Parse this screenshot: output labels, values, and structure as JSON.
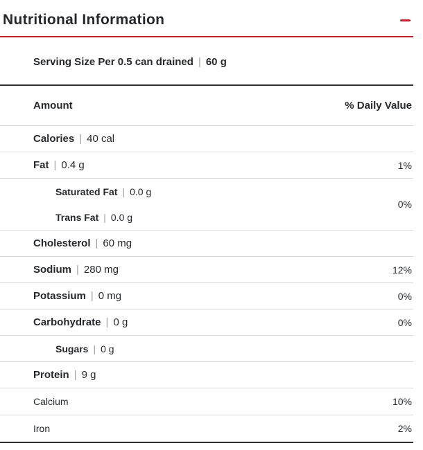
{
  "colors": {
    "accent_red": "#c2202c",
    "text": "#26282b",
    "divider_light": "#d8d8d8",
    "divider_dark": "#2e2e30"
  },
  "header": {
    "title": "Nutritional Information",
    "collapse_icon": "minus-icon"
  },
  "serving": {
    "label": "Serving Size Per 0.5 can drained",
    "separator": "|",
    "value": "60 g"
  },
  "table": {
    "amount_header": "Amount",
    "daily_value_header": "% Daily Value",
    "separator": "|",
    "rows": [
      {
        "style": "bold",
        "entries": [
          {
            "label": "Calories",
            "value": "40 cal"
          }
        ],
        "dv": ""
      },
      {
        "style": "bold",
        "entries": [
          {
            "label": "Fat",
            "value": "0.4 g"
          }
        ],
        "dv": "1%"
      },
      {
        "style": "sub",
        "entries": [
          {
            "label": "Saturated Fat",
            "value": "0.0 g"
          },
          {
            "label": "Trans Fat",
            "value": "0.0 g"
          }
        ],
        "dv": "0%"
      },
      {
        "style": "bold",
        "entries": [
          {
            "label": "Cholesterol",
            "value": "60 mg"
          }
        ],
        "dv": ""
      },
      {
        "style": "bold",
        "entries": [
          {
            "label": "Sodium",
            "value": "280 mg"
          }
        ],
        "dv": "12%"
      },
      {
        "style": "bold",
        "entries": [
          {
            "label": "Potassium",
            "value": "0 mg"
          }
        ],
        "dv": "0%"
      },
      {
        "style": "bold",
        "entries": [
          {
            "label": "Carbohydrate",
            "value": "0 g"
          }
        ],
        "dv": "0%"
      },
      {
        "style": "sub",
        "entries": [
          {
            "label": "Sugars",
            "value": "0 g"
          }
        ],
        "dv": ""
      },
      {
        "style": "bold",
        "entries": [
          {
            "label": "Protein",
            "value": "9 g"
          }
        ],
        "dv": ""
      },
      {
        "style": "plain",
        "entries": [
          {
            "label": "Calcium",
            "value": ""
          }
        ],
        "dv": "10%"
      },
      {
        "style": "plain",
        "entries": [
          {
            "label": "Iron",
            "value": ""
          }
        ],
        "dv": "2%"
      }
    ]
  }
}
